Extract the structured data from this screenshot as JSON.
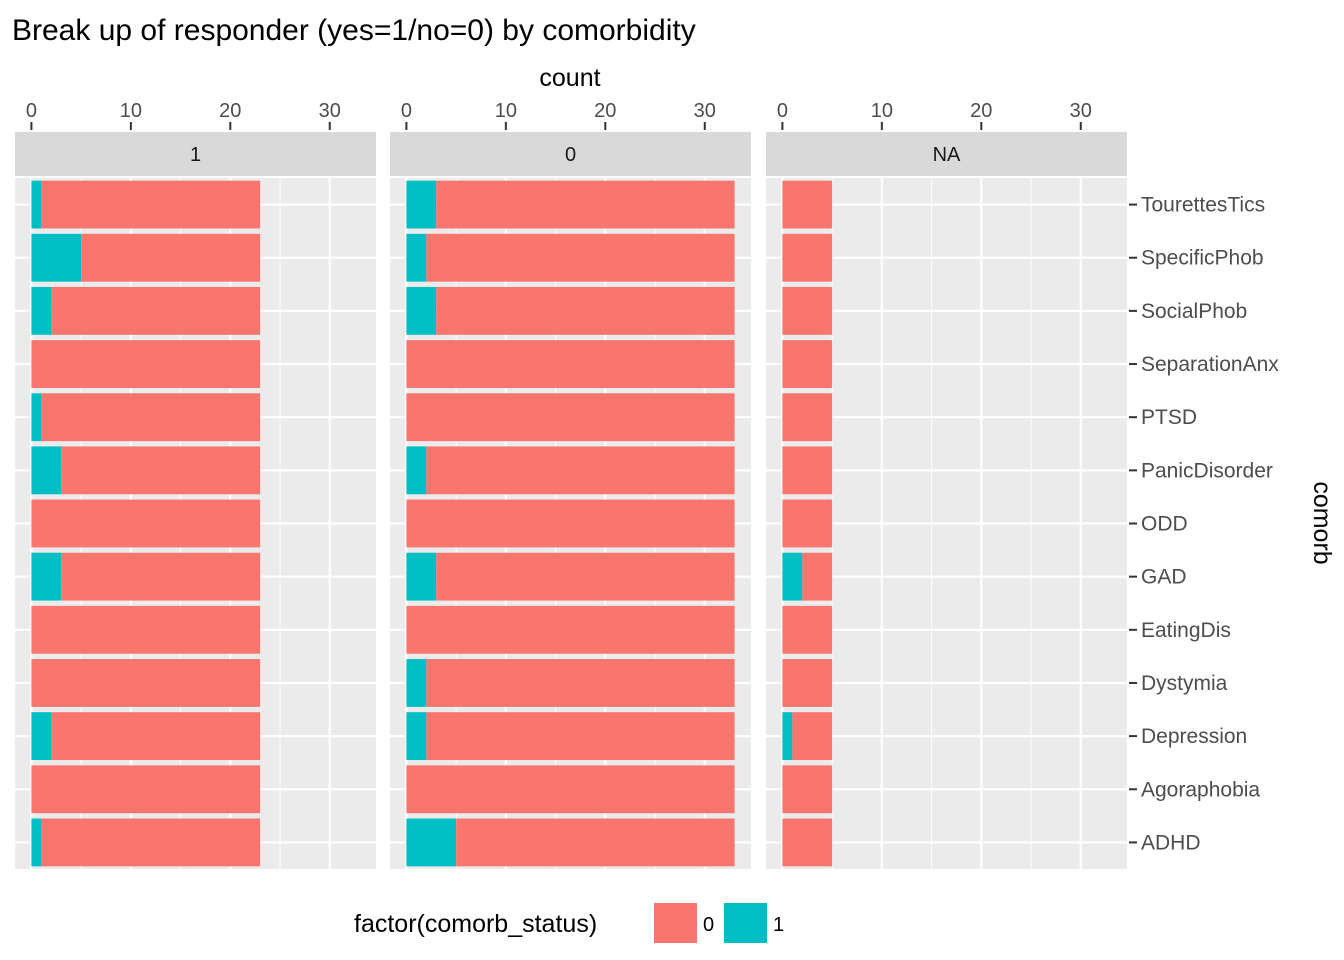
{
  "chart_data": {
    "type": "bar",
    "orientation": "horizontal",
    "stacked": true,
    "title": "Break up of responder (yes=1/no=0) by comorbidity",
    "xlabel": "count",
    "ylabel": "comorb",
    "xlim": [
      -1.65,
      34.65
    ],
    "x_ticks": [
      0,
      10,
      20,
      30
    ],
    "x_axis_position": "top",
    "y_axis_position": "right",
    "grid": true,
    "categories": [
      "ADHD",
      "Agoraphobia",
      "Depression",
      "Dystymia",
      "EatingDis",
      "GAD",
      "ODD",
      "PanicDisorder",
      "PTSD",
      "SeparationAnx",
      "SocialPhob",
      "SpecificPhob",
      "TourettesTics"
    ],
    "legend": {
      "title": "factor(comorb_status)",
      "position": "bottom",
      "entries": [
        {
          "label": "0",
          "color": "#F8766D"
        },
        {
          "label": "1",
          "color": "#00BFC4"
        }
      ]
    },
    "panels": [
      {
        "strip": "1",
        "series": [
          {
            "name": "0",
            "color": "#F8766D",
            "values": [
              22,
              23,
              21,
              23,
              23,
              20,
              23,
              20,
              22,
              23,
              21,
              18,
              22
            ]
          },
          {
            "name": "1",
            "color": "#00BFC4",
            "values": [
              1,
              0,
              2,
              0,
              0,
              3,
              0,
              3,
              1,
              0,
              2,
              5,
              1
            ]
          }
        ]
      },
      {
        "strip": "0",
        "series": [
          {
            "name": "0",
            "color": "#F8766D",
            "values": [
              28,
              33,
              31,
              31,
              33,
              30,
              33,
              31,
              33,
              33,
              30,
              31,
              30
            ]
          },
          {
            "name": "1",
            "color": "#00BFC4",
            "values": [
              5,
              0,
              2,
              2,
              0,
              3,
              0,
              2,
              0,
              0,
              3,
              2,
              3
            ]
          }
        ]
      },
      {
        "strip": "NA",
        "series": [
          {
            "name": "0",
            "color": "#F8766D",
            "values": [
              5,
              5,
              4,
              5,
              5,
              3,
              5,
              5,
              5,
              5,
              5,
              5,
              5
            ]
          },
          {
            "name": "1",
            "color": "#00BFC4",
            "values": [
              0,
              0,
              1,
              0,
              0,
              2,
              0,
              0,
              0,
              0,
              0,
              0,
              0
            ]
          }
        ]
      }
    ],
    "colors": {
      "panel_background": "#EBEBEB",
      "grid_major": "#FFFFFF",
      "strip_background": "#D9D9D9",
      "axis_text": "#4D4D4D",
      "tick_mark": "#333333"
    }
  }
}
